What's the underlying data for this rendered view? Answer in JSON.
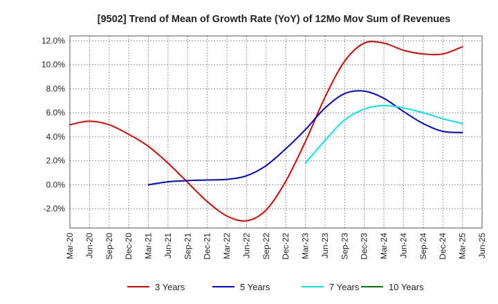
{
  "chart_data": {
    "type": "line",
    "title": "[9502]  Trend of Mean of Growth Rate (YoY) of 12Mo Mov Sum of Revenues",
    "xlabel": "",
    "ylabel": "",
    "ylim": [
      -3.6,
      12.4
    ],
    "grid": true,
    "legend_position": "bottom",
    "x_ticks": [
      "Mar-20",
      "Jun-20",
      "Sep-20",
      "Dec-20",
      "Mar-21",
      "Jun-21",
      "Sep-21",
      "Dec-21",
      "Mar-22",
      "Jun-22",
      "Sep-22",
      "Dec-22",
      "Mar-23",
      "Jun-23",
      "Sep-23",
      "Dec-23",
      "Mar-24",
      "Jun-24",
      "Sep-24",
      "Dec-24",
      "Mar-25",
      "Jun-25"
    ],
    "y_ticks": [
      -2,
      0,
      2,
      4,
      6,
      8,
      10,
      12
    ],
    "y_tick_labels": [
      "-2.0%",
      "0.0%",
      "2.0%",
      "4.0%",
      "6.0%",
      "8.0%",
      "10.0%",
      "12.0%"
    ],
    "series": [
      {
        "name": "3 Years",
        "color": "#dd0000",
        "values": [
          5.0,
          5.3,
          5.0,
          4.2,
          3.2,
          1.8,
          0.2,
          -1.4,
          -2.6,
          -3.0,
          -2.1,
          0.3,
          3.6,
          7.3,
          10.3,
          11.8,
          11.8,
          11.2,
          10.9,
          10.9,
          11.5,
          null
        ]
      },
      {
        "name": "5 Years",
        "color": "#0000cc",
        "values": [
          null,
          null,
          null,
          null,
          0.0,
          0.25,
          0.35,
          0.4,
          0.45,
          0.75,
          1.6,
          3.0,
          4.6,
          6.4,
          7.6,
          7.8,
          7.2,
          6.1,
          5.1,
          4.45,
          4.35,
          null
        ]
      },
      {
        "name": "7 Years",
        "color": "#00e5ee",
        "values": [
          null,
          null,
          null,
          null,
          null,
          null,
          null,
          null,
          null,
          null,
          null,
          null,
          1.8,
          3.7,
          5.4,
          6.3,
          6.6,
          6.4,
          6.0,
          5.5,
          5.1,
          null
        ]
      },
      {
        "name": "10 Years",
        "color": "#007700",
        "values": [
          null,
          null,
          null,
          null,
          null,
          null,
          null,
          null,
          null,
          null,
          null,
          null,
          null,
          null,
          null,
          null,
          null,
          null,
          null,
          null,
          null,
          null
        ]
      }
    ]
  }
}
